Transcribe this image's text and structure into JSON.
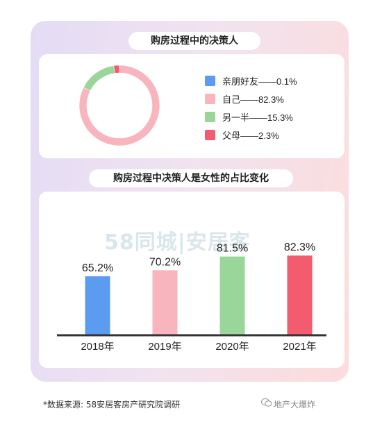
{
  "chart_data": [
    {
      "type": "pie",
      "title": "购房过程中的决策人",
      "donut": true,
      "slices": [
        {
          "label": "亲朋好友——0.1%",
          "name": "亲朋好友",
          "value": 0.1,
          "color": "#5b9bf0"
        },
        {
          "label": "自己——82.3%",
          "name": "自己",
          "value": 82.3,
          "color": "#f8b5bd"
        },
        {
          "label": "另一半——15.3%",
          "name": "另一半",
          "value": 15.3,
          "color": "#9ad69a"
        },
        {
          "label": "父母——2.3%",
          "name": "父母",
          "value": 2.3,
          "color": "#f25c6e"
        }
      ]
    },
    {
      "type": "bar",
      "title": "购房过程中决策人是女性的占比变化",
      "categories": [
        "2018年",
        "2019年",
        "2020年",
        "2021年"
      ],
      "values": [
        65.2,
        70.2,
        81.5,
        82.3
      ],
      "value_labels": [
        "65.2%",
        "70.2%",
        "81.5%",
        "82.3%"
      ],
      "colors": [
        "#5b9bf0",
        "#f8b5bd",
        "#9ad69a",
        "#f25c6e"
      ],
      "ylim": [
        0,
        100
      ],
      "grid": false
    }
  ],
  "brand_watermark": "58同城|安居客",
  "footnote": "*数据来源: 58安居客房产研究院调研",
  "source_tag": "地产大爆炸"
}
